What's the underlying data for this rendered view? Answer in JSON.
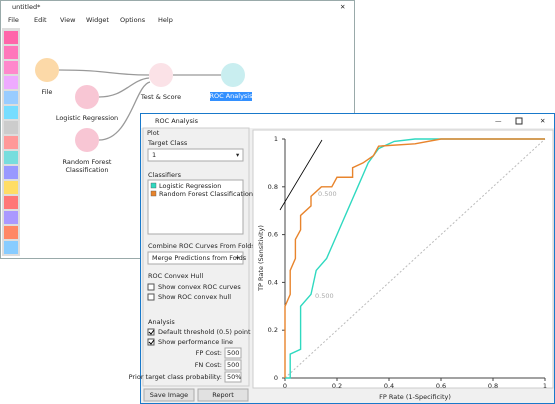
{
  "editor": {
    "title": "untitled*",
    "menu": [
      "File",
      "Edit",
      "View",
      "Widget",
      "Options",
      "Help"
    ],
    "widgets": [
      {
        "label": [
          "File"
        ]
      },
      {
        "label": [
          "Logistic Regression"
        ]
      },
      {
        "label": [
          "Random Forest",
          "Classification"
        ]
      },
      {
        "label": [
          "Test & Score"
        ]
      },
      {
        "label": [
          "ROC Analysis"
        ]
      }
    ]
  },
  "roc_window": {
    "title": "ROC Analysis",
    "controls": {
      "plot_box": "Plot",
      "target_class_label": "Target Class",
      "target_class": "1",
      "classifiers_label": "Classifiers",
      "combine_label": "Combine ROC Curves From Folds",
      "combine_value": "Merge Predictions from Folds",
      "hull_box": "ROC Convex Hull",
      "hull_options": [
        "Show convex ROC curves",
        "Show ROC convex hull"
      ],
      "analysis_box": "Analysis",
      "analysis_options": [
        "Default threshold (0.5) point",
        "Show performance line"
      ],
      "fp_cost_label": "FP Cost:",
      "fp_cost": "500",
      "fn_cost_label": "FN Cost:",
      "fn_cost": "500",
      "prior_label": "Prior target class probability:",
      "prior": "50%",
      "buttons": [
        "Save Image",
        "Report"
      ]
    },
    "plot": {
      "xlabel": "FP Rate (1-Specificity)",
      "ylabel": "TP Rate (Sensitivity)",
      "xlim": [
        0,
        1
      ],
      "ylim": [
        0,
        1
      ],
      "xticks": [
        0,
        0.2,
        0.4,
        0.6,
        0.8,
        1
      ],
      "yticks": [
        0,
        0.2,
        0.4,
        0.6,
        0.8,
        1
      ],
      "threshold_labels": [
        "0.500",
        "0.500"
      ],
      "series": [
        {
          "name": "Logistic Regression",
          "color": "#2fd9c0",
          "x": [
            0,
            0.02,
            0.02,
            0.06,
            0.06,
            0.1,
            0.12,
            0.16,
            0.2,
            0.22,
            0.24,
            0.26,
            0.28,
            0.3,
            0.32,
            0.36,
            0.42,
            0.5,
            1
          ],
          "y": [
            0,
            0,
            0.1,
            0.12,
            0.3,
            0.35,
            0.45,
            0.5,
            0.6,
            0.65,
            0.7,
            0.75,
            0.8,
            0.85,
            0.9,
            0.96,
            0.99,
            1,
            1
          ]
        },
        {
          "name": "Random Forest Classification",
          "color": "#e8842c",
          "x": [
            0,
            0,
            0.02,
            0.02,
            0.04,
            0.04,
            0.06,
            0.06,
            0.1,
            0.1,
            0.14,
            0.18,
            0.2,
            0.26,
            0.26,
            0.3,
            0.34,
            0.36,
            0.5,
            0.6,
            1
          ],
          "y": [
            0,
            0.3,
            0.35,
            0.45,
            0.5,
            0.58,
            0.62,
            0.68,
            0.72,
            0.76,
            0.8,
            0.8,
            0.84,
            0.84,
            0.88,
            0.9,
            0.93,
            0.97,
            0.98,
            1,
            1
          ]
        }
      ]
    }
  }
}
